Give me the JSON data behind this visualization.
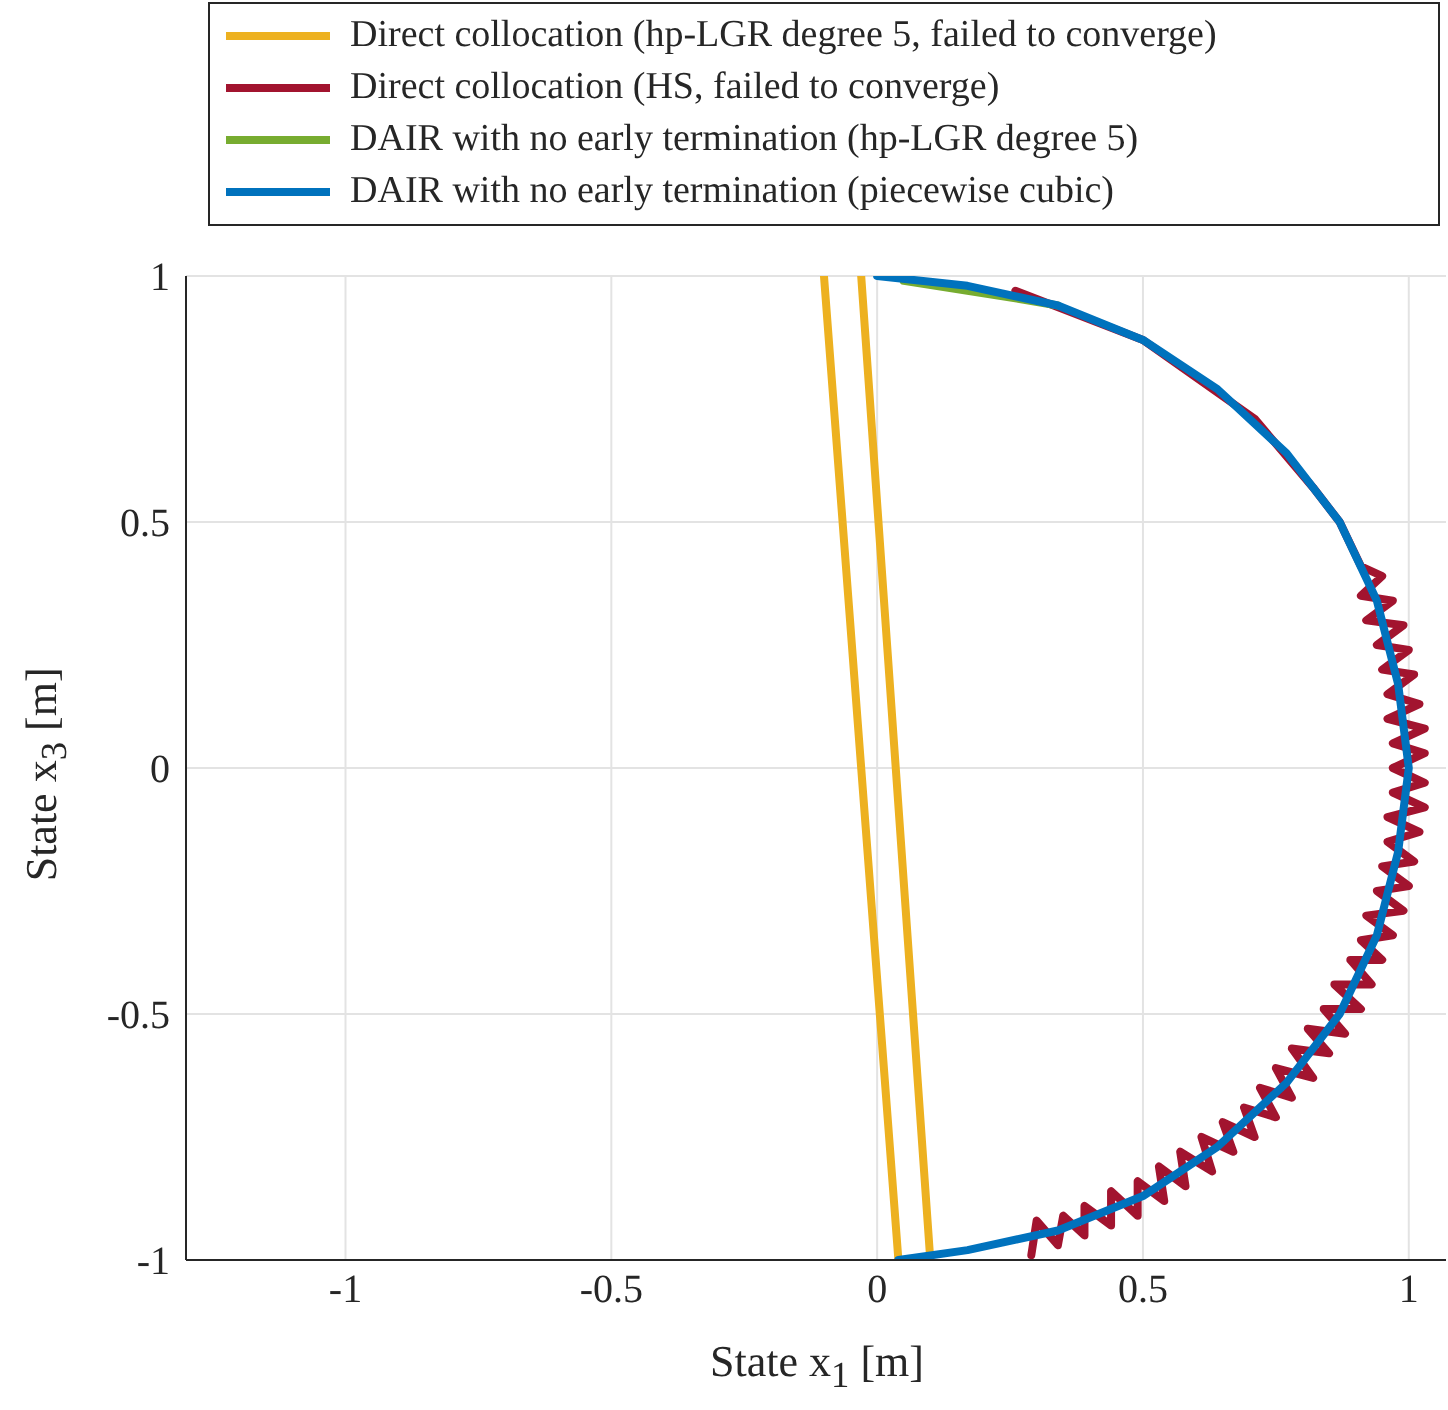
{
  "chart_data": {
    "type": "line",
    "xlabel": "State x$_{1}$ [m]",
    "ylabel": "State x$_{3}$ [m]",
    "xlim": [
      -1.3,
      1.07
    ],
    "ylim": [
      -1,
      1
    ],
    "xticks": [
      -1,
      -0.5,
      0,
      0.5,
      1
    ],
    "yticks": [
      -1,
      -0.5,
      0,
      0.5,
      1
    ],
    "grid": true,
    "legend": "top",
    "marker": "none",
    "line_style": "solid",
    "series": [
      {
        "name": "Direct collocation (hp-LGR degree 5, failed to converge)",
        "color": "#edb120",
        "x": [
          -0.1,
          0.04,
          0.1,
          -0.03
        ],
        "values": [
          1,
          -1,
          -1,
          1
        ]
      },
      {
        "name": "Direct collocation (HS, failed to converge)",
        "color": "#a2142f",
        "x": [
          0.26,
          0.5,
          0.71,
          0.82,
          0.87,
          0.91,
          0.95,
          0.91,
          0.97,
          0.92,
          0.99,
          0.94,
          1.0,
          0.95,
          1.01,
          0.96,
          1.02,
          0.96,
          1.03,
          0.97,
          1.03,
          0.97,
          1.03,
          0.97,
          1.03,
          0.96,
          1.02,
          0.96,
          1.01,
          0.95,
          1.0,
          0.94,
          0.99,
          0.92,
          0.97,
          0.91,
          0.95,
          0.89,
          0.93,
          0.86,
          0.91,
          0.84,
          0.88,
          0.81,
          0.85,
          0.78,
          0.82,
          0.75,
          0.78,
          0.72,
          0.75,
          0.69,
          0.71,
          0.65,
          0.67,
          0.61,
          0.63,
          0.57,
          0.58,
          0.53,
          0.54,
          0.49,
          0.49,
          0.44,
          0.44,
          0.39,
          0.39,
          0.35,
          0.34,
          0.3,
          0.29
        ],
        "values": [
          0.97,
          0.87,
          0.71,
          0.57,
          0.5,
          0.41,
          0.39,
          0.35,
          0.34,
          0.3,
          0.29,
          0.25,
          0.24,
          0.2,
          0.19,
          0.15,
          0.13,
          0.1,
          0.08,
          0.05,
          0.03,
          0,
          -0.03,
          -0.05,
          -0.08,
          -0.1,
          -0.13,
          -0.15,
          -0.19,
          -0.2,
          -0.24,
          -0.25,
          -0.29,
          -0.3,
          -0.34,
          -0.35,
          -0.39,
          -0.39,
          -0.44,
          -0.44,
          -0.49,
          -0.49,
          -0.54,
          -0.53,
          -0.58,
          -0.57,
          -0.63,
          -0.61,
          -0.67,
          -0.65,
          -0.71,
          -0.69,
          -0.75,
          -0.72,
          -0.78,
          -0.75,
          -0.82,
          -0.78,
          -0.85,
          -0.81,
          -0.88,
          -0.84,
          -0.91,
          -0.86,
          -0.93,
          -0.89,
          -0.95,
          -0.91,
          -0.97,
          -0.92,
          -0.99
        ]
      },
      {
        "name": "DAIR with no early termination (hp-LGR degree 5)",
        "color": "#77ac30",
        "x": [
          0.05,
          0.23,
          0.34
        ],
        "values": [
          0.99,
          0.96,
          0.94
        ]
      },
      {
        "name": "DAIR with no early termination (piecewise cubic)",
        "color": "#0072bd",
        "x": [
          0,
          0.17,
          0.34,
          0.5,
          0.64,
          0.77,
          0.87,
          0.94,
          0.98,
          1,
          0.98,
          0.94,
          0.87,
          0.77,
          0.64,
          0.5,
          0.34,
          0.17,
          0.04
        ],
        "values": [
          1,
          0.98,
          0.94,
          0.87,
          0.77,
          0.64,
          0.5,
          0.34,
          0.17,
          0,
          -0.17,
          -0.34,
          -0.5,
          -0.64,
          -0.77,
          -0.87,
          -0.94,
          -0.98,
          -1
        ]
      }
    ]
  }
}
